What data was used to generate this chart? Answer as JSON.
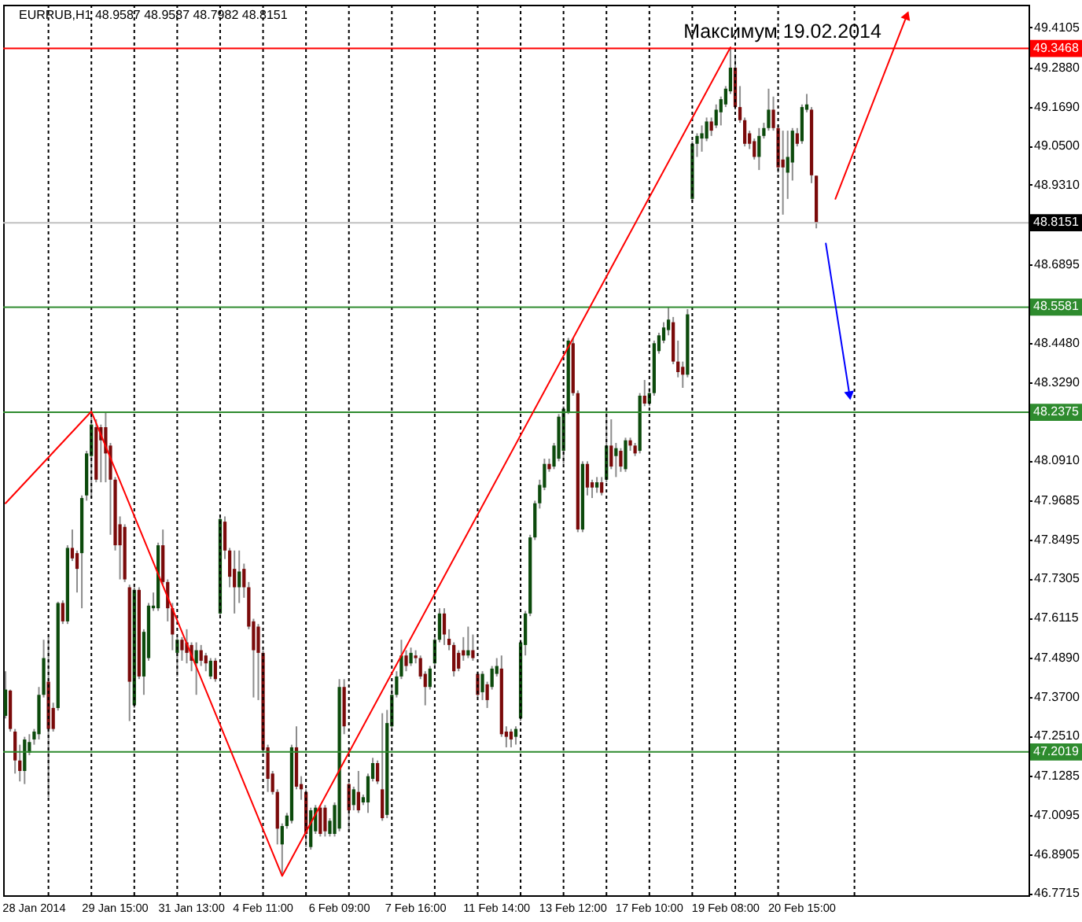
{
  "chart_data": {
    "type": "candlestick",
    "title": "EURRUB,H1 48.9587 48.9587 48.7982 48.8151",
    "categories": [
      null,
      null,
      null,
      null,
      null,
      null,
      "28 Jan 2014",
      null,
      null,
      null,
      null,
      null,
      null,
      null,
      null,
      null,
      null,
      null,
      null,
      null,
      null,
      null,
      null,
      "29 Jan 15:00",
      null,
      null,
      null,
      null,
      null,
      null,
      null,
      null,
      null,
      null,
      null,
      null,
      null,
      null,
      null,
      "31 Jan 13:00",
      null,
      null,
      null,
      null,
      null,
      null,
      null,
      null,
      null,
      null,
      null,
      null,
      null,
      null,
      "4 Feb 11:00",
      null,
      null,
      null,
      null,
      null,
      null,
      null,
      null,
      null,
      null,
      null,
      null,
      null,
      null,
      null,
      "6 Feb 09:00",
      null,
      null,
      null,
      null,
      null,
      null,
      null,
      null,
      null,
      null,
      null,
      null,
      null,
      null,
      null,
      "7 Feb 16:00",
      null,
      null,
      null,
      null,
      null,
      null,
      null,
      null,
      null,
      null,
      null,
      null,
      null,
      null,
      null,
      null,
      "11 Feb 14:00",
      null,
      null,
      null,
      null,
      null,
      null,
      null,
      null,
      null,
      null,
      null,
      null,
      null,
      null,
      null,
      "13 Feb 12:00",
      null,
      null,
      null,
      null,
      null,
      null,
      null,
      null,
      null,
      null,
      null,
      null,
      null,
      null,
      null,
      "17 Feb 10:00",
      null,
      null,
      null,
      null,
      null,
      null,
      null,
      null,
      null,
      null,
      null,
      null,
      null,
      null,
      null,
      "19 Feb 08:00",
      null,
      null,
      null,
      null,
      null,
      null,
      null,
      null,
      null,
      null,
      null,
      null,
      null,
      null,
      null,
      "20 Feb 15:00",
      null,
      null,
      null,
      null,
      null,
      null,
      null,
      null,
      null,
      null,
      null,
      null,
      null,
      null,
      null,
      null,
      null,
      null,
      null,
      null,
      null,
      null,
      null,
      null,
      null,
      null,
      null,
      null,
      null,
      null,
      null,
      null,
      null,
      null,
      null,
      null,
      null,
      null,
      null,
      null,
      null,
      null,
      null,
      null,
      null,
      null,
      null
    ],
    "ohlc": [
      [
        47.312,
        47.448,
        47.304,
        47.392
      ],
      [
        47.389,
        47.392,
        47.264,
        47.272
      ],
      [
        47.264,
        47.272,
        47.136,
        47.176
      ],
      [
        47.176,
        47.224,
        47.112,
        47.144
      ],
      [
        47.144,
        47.248,
        47.104,
        47.24
      ],
      [
        47.2,
        47.256,
        47.192,
        47.232
      ],
      [
        47.24,
        47.272,
        47.224,
        47.264
      ],
      [
        47.256,
        47.4,
        47.24,
        47.376
      ],
      [
        47.376,
        47.544,
        47.368,
        47.488
      ],
      [
        47.416,
        47.552,
        47.064,
        47.272
      ],
      [
        47.336,
        47.352,
        47.264,
        47.272
      ],
      [
        47.336,
        47.66,
        47.328,
        47.656
      ],
      [
        47.656,
        47.664,
        47.592,
        47.6
      ],
      [
        47.6,
        47.832,
        47.592,
        47.824
      ],
      [
        47.824,
        47.88,
        47.784,
        47.792
      ],
      [
        47.808,
        47.816,
        47.688,
        47.76
      ],
      [
        47.808,
        47.984,
        47.64,
        47.976
      ],
      [
        47.984,
        48.12,
        47.968,
        48.112
      ],
      [
        48.104,
        48.24,
        47.976,
        48.2
      ],
      [
        48.192,
        48.216,
        48.024,
        48.032
      ],
      [
        48.192,
        48.2,
        48.024,
        48.152
      ],
      [
        48.192,
        48.24,
        48.024,
        48.112
      ],
      [
        48.136,
        48.144,
        47.864,
        48.032
      ],
      [
        48.032,
        48.04,
        47.816,
        47.832
      ],
      [
        47.896,
        47.92,
        47.728,
        47.832
      ],
      [
        47.888,
        47.896,
        47.72,
        47.728
      ],
      [
        47.704,
        47.712,
        47.296,
        47.416
      ],
      [
        47.344,
        47.704,
        47.336,
        47.696
      ],
      [
        47.696,
        47.704,
        47.424,
        47.432
      ],
      [
        47.432,
        47.576,
        47.376,
        47.568
      ],
      [
        47.488,
        47.656,
        47.48,
        47.648
      ],
      [
        47.64,
        47.688,
        47.632,
        47.648
      ],
      [
        47.64,
        47.84,
        47.632,
        47.832
      ],
      [
        47.832,
        47.88,
        47.712,
        47.72
      ],
      [
        47.72,
        47.728,
        47.6,
        47.64
      ],
      [
        47.64,
        47.656,
        47.512,
        47.56
      ],
      [
        47.504,
        47.552,
        47.432,
        47.544
      ],
      [
        47.544,
        47.552,
        47.48,
        47.512
      ],
      [
        47.536,
        47.576,
        47.472,
        47.504
      ],
      [
        47.528,
        47.536,
        47.448,
        47.48
      ],
      [
        47.472,
        47.536,
        47.376,
        47.512
      ],
      [
        47.512,
        47.528,
        47.464,
        47.48
      ],
      [
        47.496,
        47.504,
        47.448,
        47.472
      ],
      [
        47.432,
        47.488,
        47.424,
        47.48
      ],
      [
        47.48,
        47.488,
        47.416,
        47.424
      ],
      [
        47.624,
        47.92,
        47.616,
        47.912
      ],
      [
        47.904,
        47.92,
        47.79,
        47.816
      ],
      [
        47.816,
        47.824,
        47.704,
        47.736
      ],
      [
        47.76,
        47.816,
        47.624,
        47.704
      ],
      [
        47.704,
        47.816,
        47.656,
        47.752
      ],
      [
        47.76,
        47.776,
        47.672,
        47.704
      ],
      [
        47.704,
        47.72,
        47.576,
        47.584
      ],
      [
        47.6,
        47.608,
        47.368,
        47.512
      ],
      [
        47.584,
        47.592,
        47.36,
        47.504
      ],
      [
        47.504,
        47.512,
        47.2,
        47.208
      ],
      [
        47.216,
        47.224,
        47.08,
        47.12
      ],
      [
        47.136,
        47.144,
        47.072,
        47.08
      ],
      [
        47.08,
        47.088,
        46.92,
        46.968
      ],
      [
        46.92,
        46.984,
        46.824,
        46.976
      ],
      [
        46.976,
        47.016,
        46.968,
        47.008
      ],
      [
        46.992,
        47.224,
        46.984,
        47.216
      ],
      [
        47.216,
        47.28,
        47.088,
        47.096
      ],
      [
        47.104,
        47.128,
        47.056,
        47.088
      ],
      [
        47.08,
        47.088,
        46.912,
        46.952
      ],
      [
        46.912,
        47.032,
        46.904,
        47.024
      ],
      [
        46.96,
        47.04,
        46.952,
        47.032
      ],
      [
        47.032,
        47.04,
        46.944,
        46.952
      ],
      [
        47.032,
        47.04,
        46.944,
        46.96
      ],
      [
        46.952,
        47.0,
        46.944,
        46.992
      ],
      [
        46.952,
        47.048,
        46.944,
        47.04
      ],
      [
        46.968,
        47.424,
        46.96,
        47.4
      ],
      [
        47.4,
        47.424,
        47.256,
        47.28
      ],
      [
        47.104,
        47.112,
        46.96,
        47.024
      ],
      [
        47.04,
        47.096,
        47.024,
        47.088
      ],
      [
        47.08,
        47.144,
        47.016,
        47.024
      ],
      [
        47.048,
        47.072,
        47.04,
        47.064
      ],
      [
        47.048,
        47.136,
        47.016,
        47.128
      ],
      [
        47.12,
        47.184,
        47.112,
        47.168
      ],
      [
        47.168,
        47.176,
        47.104,
        47.112
      ],
      [
        47.088,
        47.32,
        46.992,
        47.0
      ],
      [
        47.01,
        47.33,
        47.0,
        47.29
      ],
      [
        47.28,
        47.408,
        47.27,
        47.376
      ],
      [
        47.376,
        47.448,
        47.368,
        47.432
      ],
      [
        47.432,
        47.544,
        47.424,
        47.496
      ],
      [
        47.496,
        47.512,
        47.448,
        47.464
      ],
      [
        47.472,
        47.52,
        47.464,
        47.504
      ],
      [
        47.496,
        47.512,
        47.472,
        47.488
      ],
      [
        47.488,
        47.496,
        47.424,
        47.432
      ],
      [
        47.44,
        47.448,
        47.344,
        47.4
      ],
      [
        47.4,
        47.464,
        47.392,
        47.456
      ],
      [
        47.472,
        47.552,
        47.464,
        47.544
      ],
      [
        47.544,
        47.64,
        47.536,
        47.624
      ],
      [
        47.624,
        47.64,
        47.528,
        47.56
      ],
      [
        47.547,
        47.576,
        47.512,
        47.528
      ],
      [
        47.528,
        47.536,
        47.432,
        47.448
      ],
      [
        47.504,
        47.512,
        47.448,
        47.456
      ],
      [
        47.512,
        47.552,
        47.48,
        47.496
      ],
      [
        47.496,
        47.584,
        47.488,
        47.512
      ],
      [
        47.512,
        47.56,
        47.48,
        47.488
      ],
      [
        47.44,
        47.448,
        47.368,
        47.376
      ],
      [
        47.384,
        47.448,
        47.36,
        47.44
      ],
      [
        47.408,
        47.416,
        47.336,
        47.36
      ],
      [
        47.4,
        47.464,
        47.392,
        47.456
      ],
      [
        47.44,
        47.488,
        47.432,
        47.464
      ],
      [
        47.456,
        47.496,
        47.248,
        47.256
      ],
      [
        47.264,
        47.28,
        47.216,
        47.248
      ],
      [
        47.264,
        47.272,
        47.216,
        47.24
      ],
      [
        47.248,
        47.28,
        47.224,
        47.272
      ],
      [
        47.304,
        47.544,
        47.296,
        47.536
      ],
      [
        47.528,
        47.632,
        47.496,
        47.624
      ],
      [
        47.624,
        47.864,
        47.616,
        47.856
      ],
      [
        47.856,
        47.968,
        47.848,
        47.96
      ],
      [
        47.96,
        48.032,
        47.944,
        48.016
      ],
      [
        48.008,
        48.096,
        48.0,
        48.08
      ],
      [
        48.08,
        48.096,
        48.056,
        48.064
      ],
      [
        48.072,
        48.144,
        48.064,
        48.136
      ],
      [
        48.096,
        48.232,
        48.088,
        48.224
      ],
      [
        48.12,
        48.256,
        48.08,
        48.248
      ],
      [
        48.24,
        48.464,
        48.232,
        48.456
      ],
      [
        48.448,
        48.464,
        48.288,
        48.296
      ],
      [
        48.296,
        48.304,
        47.872,
        47.88
      ],
      [
        47.88,
        48.088,
        47.872,
        48.08
      ],
      [
        48.08,
        48.088,
        47.984,
        48.008
      ],
      [
        48.024,
        48.032,
        47.976,
        48.008
      ],
      [
        48.008,
        48.04,
        47.992,
        48.024
      ],
      [
        48.024,
        48.04,
        47.984,
        47.992
      ],
      [
        48.032,
        48.248,
        48.024,
        48.136
      ],
      [
        48.136,
        48.216,
        48.064,
        48.072
      ],
      [
        48.104,
        48.144,
        48.04,
        48.128
      ],
      [
        48.12,
        48.128,
        48.056,
        48.072
      ],
      [
        48.064,
        48.16,
        48.056,
        48.152
      ],
      [
        48.152,
        48.16,
        48.12,
        48.136
      ],
      [
        48.136,
        48.144,
        48.104,
        48.112
      ],
      [
        48.12,
        48.296,
        48.112,
        48.288
      ],
      [
        48.288,
        48.336,
        48.256,
        48.264
      ],
      [
        48.264,
        48.312,
        48.256,
        48.296
      ],
      [
        48.296,
        48.456,
        48.288,
        48.448
      ],
      [
        48.424,
        48.48,
        48.416,
        48.472
      ],
      [
        48.456,
        48.512,
        48.448,
        48.496
      ],
      [
        48.488,
        48.558,
        48.472,
        48.52
      ],
      [
        48.512,
        48.528,
        48.384,
        48.392
      ],
      [
        48.392,
        48.456,
        48.344,
        48.36
      ],
      [
        48.376,
        48.392,
        48.312,
        48.352
      ],
      [
        48.352,
        48.552,
        48.344,
        48.536
      ],
      [
        48.888,
        49.064,
        48.88,
        49.056
      ],
      [
        49.056,
        49.088,
        49.016,
        49.08
      ],
      [
        49.072,
        49.112,
        49.032,
        49.088
      ],
      [
        49.072,
        49.136,
        49.064,
        49.124
      ],
      [
        49.124,
        49.136,
        49.08,
        49.096
      ],
      [
        49.112,
        49.176,
        49.104,
        49.16
      ],
      [
        49.152,
        49.2,
        49.112,
        49.192
      ],
      [
        49.176,
        49.232,
        49.168,
        49.224
      ],
      [
        49.216,
        49.3468,
        49.208,
        49.288
      ],
      [
        49.288,
        49.328,
        49.16,
        49.168
      ],
      [
        49.168,
        49.232,
        49.12,
        49.128
      ],
      [
        49.128,
        49.136,
        49.048,
        49.056
      ],
      [
        49.088,
        49.096,
        49.04,
        49.056
      ],
      [
        49.064,
        49.072,
        49.008,
        49.016
      ],
      [
        49.016,
        49.104,
        48.976,
        49.08
      ],
      [
        49.08,
        49.12,
        49.072,
        49.104
      ],
      [
        49.104,
        49.224,
        49.096,
        49.16
      ],
      [
        49.16,
        49.2,
        49.096,
        49.104
      ],
      [
        49.104,
        49.112,
        48.968,
        48.984
      ],
      [
        49.008,
        49.096,
        48.84,
        48.984
      ],
      [
        48.968,
        49.096,
        48.888,
        49.016
      ],
      [
        48.999,
        49.104,
        48.944,
        49.096
      ],
      [
        49.088,
        49.104,
        49.048,
        49.056
      ],
      [
        49.064,
        49.176,
        49.056,
        49.168
      ],
      [
        49.16,
        49.208,
        49.152,
        49.176
      ],
      [
        49.16,
        49.168,
        48.936,
        48.96
      ],
      [
        48.9587,
        48.9587,
        48.7982,
        48.8151
      ],
      null,
      null,
      null,
      null,
      null,
      null,
      null,
      null,
      null,
      null,
      null,
      null,
      null,
      null,
      null,
      null,
      null,
      null,
      null,
      null,
      null,
      null,
      null,
      null,
      null,
      null,
      null,
      null,
      null,
      null,
      null,
      null,
      null,
      null,
      null,
      null,
      null,
      null,
      null,
      null,
      null,
      null,
      null,
      null
    ],
    "colors": [
      "#0c4a0c",
      "#7a0a0a",
      "#7a0a0a",
      "#7a0a0a",
      "#0c4a0c",
      "#0c4a0c",
      "#0c4a0c",
      "#0c4a0c",
      "#0c4a0c",
      "#7a0a0a",
      "#7a0a0a",
      "#0c4a0c",
      "#7a0a0a",
      "#0c4a0c",
      "#7a0a0a",
      "#7a0a0a",
      "#0c4a0c",
      "#0c4a0c",
      "#0c4a0c",
      "#7a0a0a",
      "#7a0a0a",
      "#7a0a0a",
      "#7a0a0a",
      "#7a0a0a",
      "#7a0a0a",
      "#7a0a0a",
      "#7a0a0a",
      "#0c4a0c",
      "#7a0a0a",
      "#0c4a0c",
      "#0c4a0c",
      "#0c4a0c",
      "#0c4a0c",
      "#7a0a0a",
      "#7a0a0a",
      "#7a0a0a",
      "#0c4a0c",
      "#7a0a0a",
      "#7a0a0a",
      "#7a0a0a",
      "#0c4a0c",
      "#7a0a0a",
      "#7a0a0a",
      "#0c4a0c",
      "#7a0a0a",
      "#0c4a0c",
      "#7a0a0a",
      "#7a0a0a",
      "#7a0a0a",
      "#0c4a0c",
      "#7a0a0a",
      "#7a0a0a",
      "#7a0a0a",
      "#7a0a0a",
      "#7a0a0a",
      "#7a0a0a",
      "#7a0a0a",
      "#7a0a0a",
      "#0c4a0c",
      "#0c4a0c",
      "#0c4a0c",
      "#7a0a0a",
      "#7a0a0a",
      "#7a0a0a",
      "#0c4a0c",
      "#0c4a0c",
      "#7a0a0a",
      "#7a0a0a",
      "#0c4a0c",
      "#0c4a0c",
      "#0c4a0c",
      "#7a0a0a",
      "#7a0a0a",
      "#0c4a0c",
      "#7a0a0a",
      "#0c4a0c",
      "#0c4a0c",
      "#0c4a0c",
      "#7a0a0a",
      "#7a0a0a",
      "#0c4a0c",
      "#0c4a0c",
      "#0c4a0c",
      "#0c4a0c",
      "#7a0a0a",
      "#0c4a0c",
      "#7a0a0a",
      "#7a0a0a",
      "#7a0a0a",
      "#0c4a0c",
      "#0c4a0c",
      "#0c4a0c",
      "#7a0a0a",
      "#7a0a0a",
      "#7a0a0a",
      "#7a0a0a",
      "#7a0a0a",
      "#0c4a0c",
      "#7a0a0a",
      "#7a0a0a",
      "#0c4a0c",
      "#7a0a0a",
      "#0c4a0c",
      "#0c4a0c",
      "#7a0a0a",
      "#7a0a0a",
      "#7a0a0a",
      "#0c4a0c",
      "#0c4a0c",
      "#0c4a0c",
      "#0c4a0c",
      "#0c4a0c",
      "#0c4a0c",
      "#0c4a0c",
      "#7a0a0a",
      "#0c4a0c",
      "#0c4a0c",
      "#0c4a0c",
      "#0c4a0c",
      "#7a0a0a",
      "#7a0a0a",
      "#0c4a0c",
      "#7a0a0a",
      "#7a0a0a",
      "#0c4a0c",
      "#7a0a0a",
      "#0c4a0c",
      "#7a0a0a",
      "#0c4a0c",
      "#7a0a0a",
      "#0c4a0c",
      "#7a0a0a",
      "#7a0a0a",
      "#0c4a0c",
      "#7a0a0a",
      "#0c4a0c",
      "#0c4a0c",
      "#0c4a0c",
      "#0c4a0c",
      "#0c4a0c",
      "#7a0a0a",
      "#7a0a0a",
      "#7a0a0a",
      "#0c4a0c",
      "#0c4a0c",
      "#0c4a0c",
      "#0c4a0c",
      "#0c4a0c",
      "#7a0a0a",
      "#0c4a0c",
      "#0c4a0c",
      "#0c4a0c",
      "#0c4a0c",
      "#7a0a0a",
      "#7a0a0a",
      "#7a0a0a",
      "#7a0a0a",
      "#7a0a0a",
      "#0c4a0c",
      "#0c4a0c",
      "#0c4a0c",
      "#7a0a0a",
      "#7a0a0a",
      "#7a0a0a",
      "#0c4a0c",
      "#0c4a0c",
      "#7a0a0a",
      "#0c4a0c",
      "#0c4a0c",
      "#7a0a0a",
      "#7a0a0a",
      null,
      null,
      null,
      null,
      null,
      null,
      null,
      null,
      null,
      null,
      null,
      null,
      null,
      null,
      null,
      null,
      null,
      null,
      null,
      null,
      null,
      null,
      null,
      null,
      null,
      null,
      null,
      null,
      null,
      null,
      null,
      null,
      null,
      null,
      null,
      null,
      null,
      null,
      null,
      null,
      null,
      null,
      null,
      null
    ],
    "series": [
      {
        "type": "line",
        "color": "#ff0000",
        "values": [
          47.96,
          null,
          null,
          null,
          null,
          null,
          null,
          null,
          null,
          null,
          null,
          null,
          null,
          null,
          null,
          null,
          null,
          null,
          48.24,
          null,
          null,
          null,
          null,
          null,
          null,
          null,
          null,
          null,
          null,
          null,
          null,
          null,
          null,
          null,
          null,
          null,
          null,
          null,
          null,
          null,
          null,
          null,
          null,
          null,
          null,
          null,
          null,
          null,
          null,
          null,
          null,
          null,
          null,
          null,
          null,
          null,
          null,
          null,
          46.824,
          null,
          null,
          null,
          null,
          null,
          null,
          null,
          null,
          null,
          null,
          null,
          null,
          null,
          null,
          null,
          null,
          null,
          null,
          null,
          null,
          null,
          null,
          null,
          null,
          null,
          null,
          null,
          null,
          null,
          null,
          null,
          null,
          null,
          null,
          null,
          null,
          null,
          null,
          null,
          null,
          null,
          null,
          null,
          null,
          null,
          null,
          null,
          null,
          null,
          null,
          null,
          null,
          null,
          null,
          null,
          null,
          null,
          null,
          null,
          null,
          null,
          null,
          null,
          null,
          null,
          null,
          null,
          null,
          null,
          null,
          null,
          null,
          null,
          null,
          null,
          null,
          null,
          null,
          null,
          null,
          null,
          null,
          null,
          null,
          null,
          null,
          null,
          null,
          null,
          null,
          null,
          null,
          null,
          49.35,
          null,
          null,
          null,
          null,
          null,
          null,
          null,
          null,
          null,
          null,
          null,
          null,
          null,
          null,
          null,
          null,
          null,
          null,
          null,
          null,
          null,
          null,
          null,
          null,
          null,
          null,
          null,
          null,
          null,
          null,
          null,
          null,
          null,
          null,
          null,
          null,
          null,
          null,
          null,
          null,
          null,
          null,
          null,
          null,
          null,
          null,
          null,
          null,
          null,
          null,
          null,
          null,
          null,
          null,
          null,
          null,
          null,
          null,
          null,
          null,
          null,
          null
        ]
      },
      {
        "type": "line",
        "color": "#ff0000",
        "values": [
          null,
          null,
          null,
          null,
          null,
          null,
          null,
          null,
          null,
          null,
          null,
          null,
          null,
          null,
          null,
          null,
          null,
          null,
          null,
          null,
          null,
          null,
          null,
          null,
          null,
          null,
          null,
          null,
          null,
          null,
          null,
          null,
          null,
          null,
          null,
          null,
          null,
          null,
          null,
          null,
          null,
          null,
          null,
          null,
          null,
          null,
          null,
          null,
          null,
          null,
          null,
          null,
          null,
          null,
          null,
          null,
          null,
          null,
          null,
          null,
          null,
          null,
          null,
          null,
          null,
          null,
          null,
          null,
          null,
          null,
          null,
          null,
          null,
          null,
          null,
          null,
          null,
          null,
          null,
          null,
          null,
          null,
          null,
          null,
          null,
          null,
          null,
          null,
          null,
          null,
          null,
          null,
          null,
          null,
          null,
          null,
          null,
          null,
          null,
          null,
          null,
          null,
          null,
          null,
          null,
          null,
          null,
          null,
          null,
          null,
          null,
          null,
          null,
          null,
          null,
          null,
          null,
          null,
          null,
          null,
          null,
          null,
          null,
          null,
          null,
          null,
          null,
          null,
          null,
          null,
          null,
          null,
          null,
          null,
          null,
          null,
          null,
          null,
          null,
          null,
          null,
          null,
          null,
          null,
          null,
          null,
          null,
          null,
          null,
          null,
          null,
          null,
          null,
          null,
          null,
          null,
          null,
          null,
          null,
          null,
          null,
          null,
          null,
          null,
          null,
          null,
          null,
          null,
          null,
          null,
          null,
          null,
          null,
          null,
          48.888,
          null,
          null,
          null,
          null,
          null,
          null,
          null,
          null,
          null,
          null,
          null,
          null,
          null,
          null,
          49.448,
          null,
          null,
          null,
          null,
          null,
          null,
          null,
          null,
          null,
          null,
          null,
          null,
          null,
          null,
          null,
          null,
          null,
          null,
          null,
          null,
          null,
          null,
          null,
          null,
          null
        ]
      },
      {
        "type": "line",
        "color": "#0000ff",
        "values": [
          null,
          null,
          null,
          null,
          null,
          null,
          null,
          null,
          null,
          null,
          null,
          null,
          null,
          null,
          null,
          null,
          null,
          null,
          null,
          null,
          null,
          null,
          null,
          null,
          null,
          null,
          null,
          null,
          null,
          null,
          null,
          null,
          null,
          null,
          null,
          null,
          null,
          null,
          null,
          null,
          null,
          null,
          null,
          null,
          null,
          null,
          null,
          null,
          null,
          null,
          null,
          null,
          null,
          null,
          null,
          null,
          null,
          null,
          null,
          null,
          null,
          null,
          null,
          null,
          null,
          null,
          null,
          null,
          null,
          null,
          null,
          null,
          null,
          null,
          null,
          null,
          null,
          null,
          null,
          null,
          null,
          null,
          null,
          null,
          null,
          null,
          null,
          null,
          null,
          null,
          null,
          null,
          null,
          null,
          null,
          null,
          null,
          null,
          null,
          null,
          null,
          null,
          null,
          null,
          null,
          null,
          null,
          null,
          null,
          null,
          null,
          null,
          null,
          null,
          null,
          null,
          null,
          null,
          null,
          null,
          null,
          null,
          null,
          null,
          null,
          null,
          null,
          null,
          null,
          null,
          null,
          null,
          null,
          null,
          null,
          null,
          null,
          null,
          null,
          null,
          null,
          null,
          null,
          null,
          null,
          null,
          null,
          null,
          null,
          null,
          null,
          null,
          null,
          null,
          null,
          null,
          null,
          null,
          null,
          null,
          null,
          null,
          null,
          null,
          null,
          null,
          null,
          null,
          null,
          null,
          null,
          null,
          48.752,
          null,
          null,
          null,
          null,
          48.288,
          null,
          null,
          null,
          null,
          null,
          null,
          null,
          null,
          null,
          null,
          null,
          null,
          null,
          null,
          null,
          null,
          null,
          null,
          null,
          null,
          null,
          null,
          null,
          null,
          null,
          null,
          null,
          null,
          null,
          null,
          null,
          null,
          null,
          null,
          null,
          null,
          null
        ]
      }
    ],
    "ref_lines": [
      {
        "axis": "y",
        "value": 49.3468,
        "label": "49.3468",
        "color": "#ff0000"
      },
      {
        "axis": "y",
        "value": 48.8151,
        "label": "48.8151",
        "color": "#c0c0c0"
      },
      {
        "axis": "y",
        "value": 48.5581,
        "label": "48.5581",
        "color": "#2e8b2e"
      },
      {
        "axis": "y",
        "value": 48.2375,
        "label": "48.2375",
        "color": "#2e8b2e"
      },
      {
        "axis": "y",
        "value": 47.2019,
        "label": "47.2019",
        "color": "#2e8b2e"
      }
    ],
    "annotations": [
      {
        "text": "Максимум 19.02.2014",
        "y": 49.3468
      }
    ],
    "ylim": [
      46.765,
      49.48
    ],
    "yticks": [
      49.4105,
      {
        "value": 49.288,
        "label": "49.2880"
      },
      {
        "value": 49.169,
        "label": "49.1690"
      },
      {
        "value": 49.05,
        "label": "49.0500"
      },
      {
        "value": 48.931,
        "label": "48.9310"
      },
      48.6895,
      {
        "value": 48.448,
        "label": "48.4480"
      },
      {
        "value": 48.329,
        "label": "48.3290"
      },
      {
        "value": 48.091,
        "label": "48.0910"
      },
      47.9685,
      47.8495,
      47.7305,
      47.6115,
      {
        "value": 47.489,
        "label": "47.4890"
      },
      {
        "value": 47.37,
        "label": "47.3700"
      },
      {
        "value": 47.251,
        "label": "47.2510"
      },
      47.1285,
      47.0095,
      46.8905,
      46.7715
    ]
  }
}
